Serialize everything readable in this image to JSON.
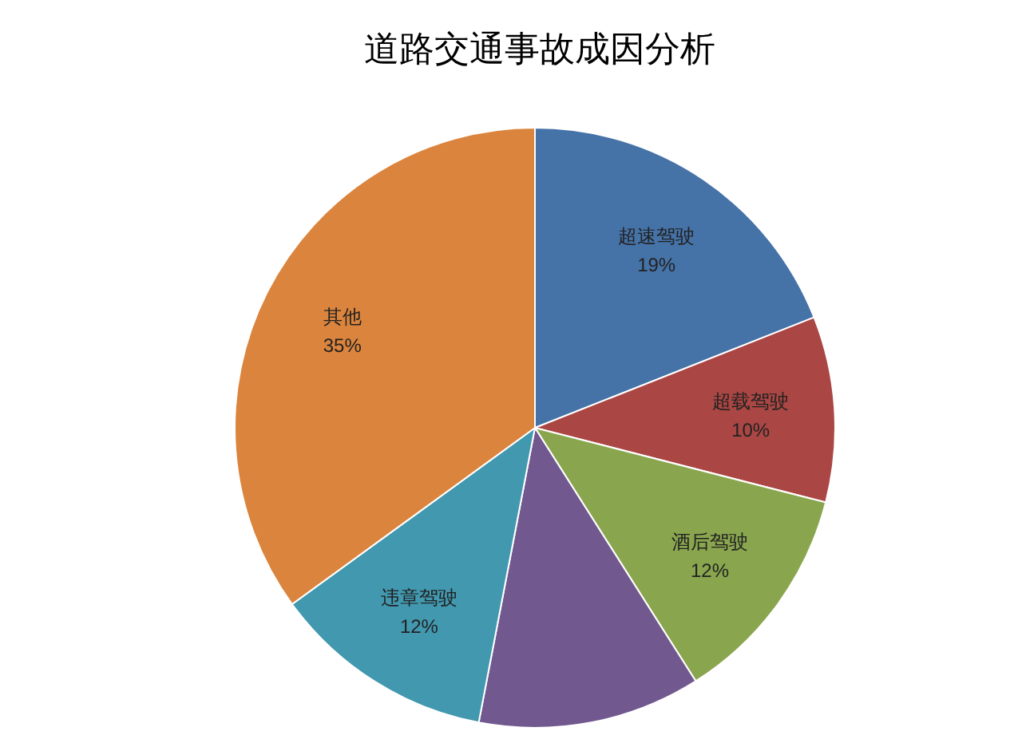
{
  "chart_data": {
    "type": "pie",
    "title": "道路交通事故成因分析",
    "categories": [
      "超速驾驶",
      "超载驾驶",
      "酒后驾驶",
      null,
      "违章驾驶",
      "其他"
    ],
    "values": [
      19,
      10,
      12,
      12,
      12,
      35
    ],
    "value_labels": [
      "19%",
      "10%",
      "12%",
      null,
      "12%",
      "35%"
    ],
    "colors": [
      "#4572a7",
      "#aa4643",
      "#89a54e",
      "#71588f",
      "#4198af",
      "#db843d"
    ],
    "legend": false
  }
}
